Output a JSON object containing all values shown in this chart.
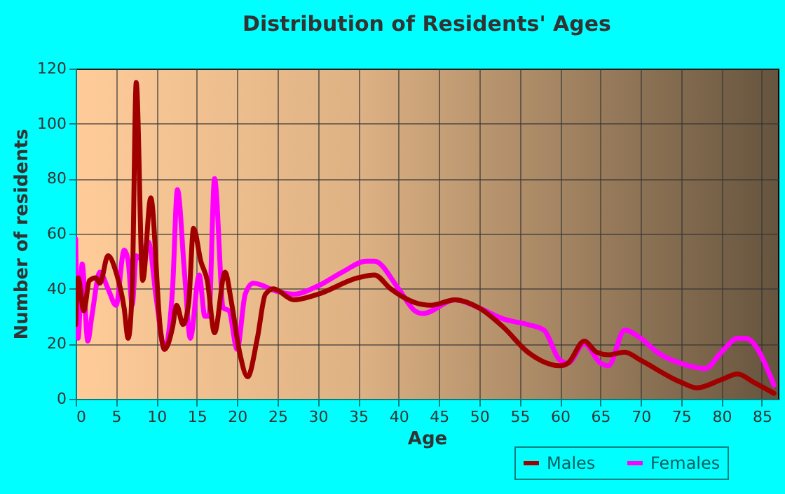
{
  "chart_data": {
    "type": "line",
    "title": "Distribution of Residents' Ages",
    "xlabel": "Age",
    "ylabel": "Number of residents",
    "xlim": [
      0,
      87
    ],
    "xticks": [
      0,
      5,
      10,
      15,
      20,
      25,
      30,
      35,
      40,
      45,
      50,
      55,
      60,
      65,
      70,
      75,
      80,
      85
    ],
    "ylim": [
      0,
      120
    ],
    "yticks": [
      0,
      20,
      40,
      60,
      80,
      100,
      120
    ],
    "grid": true,
    "legend": "bottom right",
    "series": [
      {
        "name": "Males",
        "color": "#a00000",
        "x": [
          0,
          0.3,
          1,
          1.7,
          2.5,
          3,
          4,
          5,
          6,
          6.5,
          7,
          7.5,
          8.3,
          9.3,
          10.5,
          11,
          12,
          12.5,
          13.3,
          14,
          14.6,
          15.5,
          16.3,
          17.2,
          18.5,
          19.3,
          20.3,
          21.3,
          22.5,
          23.5,
          24.5,
          27,
          30,
          35,
          37,
          39,
          42,
          44,
          47,
          50,
          53,
          56,
          60,
          61,
          63,
          64.5,
          66,
          68,
          70,
          75,
          77,
          80,
          82,
          84,
          86.5
        ],
        "values": [
          27,
          44,
          32,
          43,
          44,
          42,
          52,
          46,
          33,
          22,
          40,
          115,
          43,
          73,
          25,
          18,
          26,
          34,
          27,
          35,
          62,
          50,
          43,
          24,
          46,
          35,
          17,
          8,
          22,
          38,
          40,
          36,
          38,
          44,
          45,
          40,
          35,
          34,
          36,
          33,
          26,
          17,
          12,
          13,
          21,
          17,
          16,
          17,
          14,
          6,
          4,
          7,
          9,
          6,
          2
        ]
      },
      {
        "name": "Females",
        "color": "#ff00ff",
        "x": [
          0,
          0.3,
          0.8,
          1.5,
          2,
          3,
          4,
          5,
          6,
          6.5,
          7,
          7.5,
          8,
          9,
          10,
          11,
          12,
          12.6,
          13.5,
          14.2,
          15.3,
          16,
          16.5,
          17.2,
          18.3,
          19,
          20,
          21,
          22,
          25,
          27,
          30,
          33,
          36,
          37,
          40,
          42,
          43,
          47,
          50,
          53,
          56,
          58,
          60,
          61,
          63,
          65,
          66,
          68,
          70,
          72,
          76,
          78,
          80,
          82,
          83,
          86.5
        ],
        "values": [
          58,
          22,
          49,
          21,
          30,
          46,
          40,
          34,
          54,
          50,
          34,
          52,
          51,
          57,
          36,
          18,
          40,
          76,
          45,
          22,
          45,
          30,
          30,
          80,
          33,
          32,
          18,
          38,
          42,
          39,
          38,
          41,
          46,
          50,
          50,
          40,
          32,
          31,
          36,
          33,
          29,
          27,
          25,
          14,
          13,
          20,
          13,
          12,
          25,
          22,
          17,
          12,
          11,
          17,
          22,
          22,
          5
        ]
      }
    ]
  }
}
